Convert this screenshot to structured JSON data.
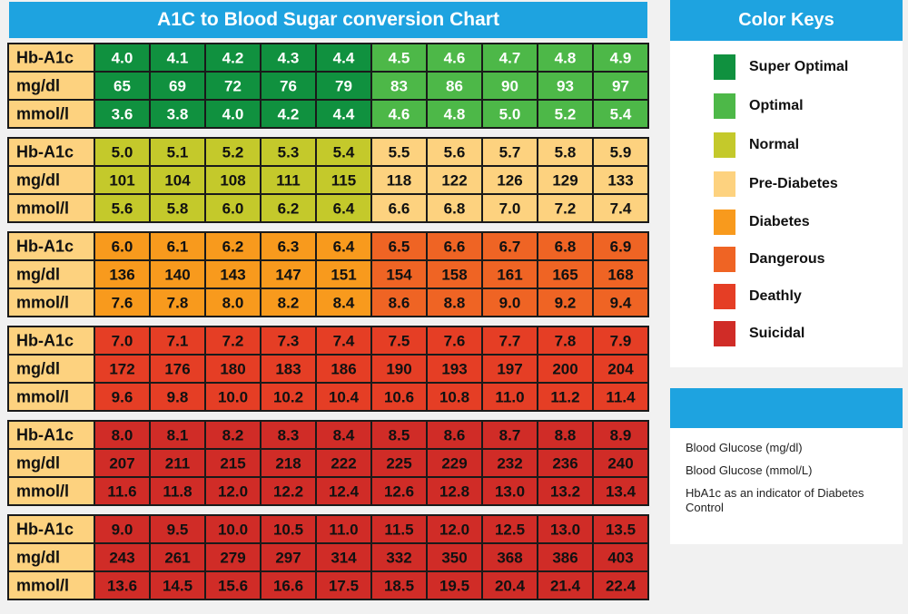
{
  "page": {
    "title": "A1C to Blood Sugar conversion Chart"
  },
  "legend": {
    "title": "Color Keys",
    "items": [
      {
        "label": "Super Optimal",
        "color": "#10913f"
      },
      {
        "label": "Optimal",
        "color": "#4db848"
      },
      {
        "label": "Normal",
        "color": "#c4c92b"
      },
      {
        "label": "Pre-Diabetes",
        "color": "#fdd27f"
      },
      {
        "label": "Diabetes",
        "color": "#f89a1d"
      },
      {
        "label": "Dangerous",
        "color": "#ef6424"
      },
      {
        "label": "Deathly",
        "color": "#e53e25"
      },
      {
        "label": "Suicidal",
        "color": "#d02c27"
      }
    ]
  },
  "info": {
    "lines": [
      "Blood Glucose (mg/dl)",
      "Blood Glucose (mmol/L)",
      "HbA1c as an indicator of Diabetes Control"
    ]
  },
  "chart_data": {
    "type": "table",
    "title": "A1C to Blood Sugar conversion Chart",
    "row_labels": [
      "Hb-A1c",
      "mg/dl",
      "mmol/l"
    ],
    "label_color": "#fdd27f",
    "blocks": [
      {
        "a1c": [
          "4.0",
          "4.1",
          "4.2",
          "4.3",
          "4.4",
          "4.5",
          "4.6",
          "4.7",
          "4.8",
          "4.9"
        ],
        "mgdl": [
          "65",
          "69",
          "72",
          "76",
          "79",
          "83",
          "86",
          "90",
          "93",
          "97"
        ],
        "mmol": [
          "3.6",
          "3.8",
          "4.0",
          "4.2",
          "4.4",
          "4.6",
          "4.8",
          "5.0",
          "5.2",
          "5.4"
        ],
        "colors": [
          "#10913f",
          "#10913f",
          "#10913f",
          "#10913f",
          "#10913f",
          "#4db848",
          "#4db848",
          "#4db848",
          "#4db848",
          "#4db848"
        ],
        "text_color": "#ffffff"
      },
      {
        "a1c": [
          "5.0",
          "5.1",
          "5.2",
          "5.3",
          "5.4",
          "5.5",
          "5.6",
          "5.7",
          "5.8",
          "5.9"
        ],
        "mgdl": [
          "101",
          "104",
          "108",
          "111",
          "115",
          "118",
          "122",
          "126",
          "129",
          "133"
        ],
        "mmol": [
          "5.6",
          "5.8",
          "6.0",
          "6.2",
          "6.4",
          "6.6",
          "6.8",
          "7.0",
          "7.2",
          "7.4"
        ],
        "colors": [
          "#c4c92b",
          "#c4c92b",
          "#c4c92b",
          "#c4c92b",
          "#c4c92b",
          "#fdd27f",
          "#fdd27f",
          "#fdd27f",
          "#fdd27f",
          "#fdd27f"
        ],
        "text_color": "#111111"
      },
      {
        "a1c": [
          "6.0",
          "6.1",
          "6.2",
          "6.3",
          "6.4",
          "6.5",
          "6.6",
          "6.7",
          "6.8",
          "6.9"
        ],
        "mgdl": [
          "136",
          "140",
          "143",
          "147",
          "151",
          "154",
          "158",
          "161",
          "165",
          "168"
        ],
        "mmol": [
          "7.6",
          "7.8",
          "8.0",
          "8.2",
          "8.4",
          "8.6",
          "8.8",
          "9.0",
          "9.2",
          "9.4"
        ],
        "colors": [
          "#f89a1d",
          "#f89a1d",
          "#f89a1d",
          "#f89a1d",
          "#f89a1d",
          "#ef6424",
          "#ef6424",
          "#ef6424",
          "#ef6424",
          "#ef6424"
        ],
        "text_color": "#111111"
      },
      {
        "a1c": [
          "7.0",
          "7.1",
          "7.2",
          "7.3",
          "7.4",
          "7.5",
          "7.6",
          "7.7",
          "7.8",
          "7.9"
        ],
        "mgdl": [
          "172",
          "176",
          "180",
          "183",
          "186",
          "190",
          "193",
          "197",
          "200",
          "204"
        ],
        "mmol": [
          "9.6",
          "9.8",
          "10.0",
          "10.2",
          "10.4",
          "10.6",
          "10.8",
          "11.0",
          "11.2",
          "11.4"
        ],
        "colors": [
          "#e53e25",
          "#e53e25",
          "#e53e25",
          "#e53e25",
          "#e53e25",
          "#e53e25",
          "#e53e25",
          "#e53e25",
          "#e53e25",
          "#e53e25"
        ],
        "text_color": "#111111"
      },
      {
        "a1c": [
          "8.0",
          "8.1",
          "8.2",
          "8.3",
          "8.4",
          "8.5",
          "8.6",
          "8.7",
          "8.8",
          "8.9"
        ],
        "mgdl": [
          "207",
          "211",
          "215",
          "218",
          "222",
          "225",
          "229",
          "232",
          "236",
          "240"
        ],
        "mmol": [
          "11.6",
          "11.8",
          "12.0",
          "12.2",
          "12.4",
          "12.6",
          "12.8",
          "13.0",
          "13.2",
          "13.4"
        ],
        "colors": [
          "#d02c27",
          "#d02c27",
          "#d02c27",
          "#d02c27",
          "#d02c27",
          "#d02c27",
          "#d02c27",
          "#d02c27",
          "#d02c27",
          "#d02c27"
        ],
        "text_color": "#111111"
      },
      {
        "a1c": [
          "9.0",
          "9.5",
          "10.0",
          "10.5",
          "11.0",
          "11.5",
          "12.0",
          "12.5",
          "13.0",
          "13.5"
        ],
        "mgdl": [
          "243",
          "261",
          "279",
          "297",
          "314",
          "332",
          "350",
          "368",
          "386",
          "403"
        ],
        "mmol": [
          "13.6",
          "14.5",
          "15.6",
          "16.6",
          "17.5",
          "18.5",
          "19.5",
          "20.4",
          "21.4",
          "22.4"
        ],
        "colors": [
          "#d02c27",
          "#d02c27",
          "#d02c27",
          "#d02c27",
          "#d02c27",
          "#d02c27",
          "#d02c27",
          "#d02c27",
          "#d02c27",
          "#d02c27"
        ],
        "text_color": "#111111"
      }
    ]
  }
}
